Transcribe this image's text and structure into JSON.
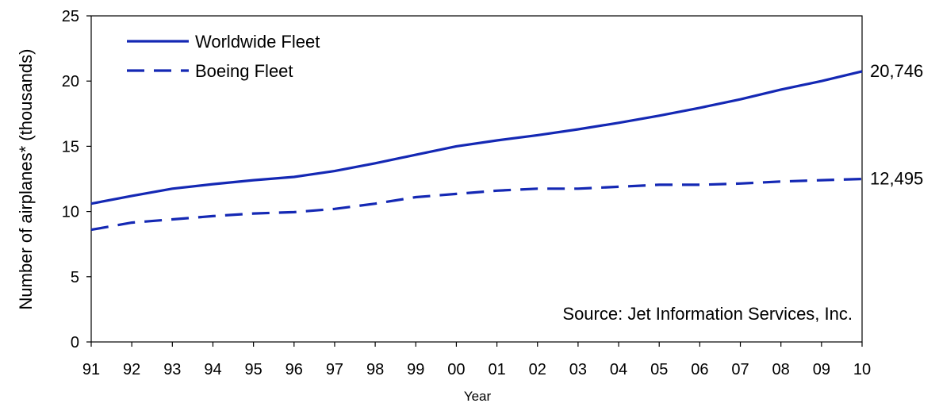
{
  "chart_data": {
    "type": "line",
    "title": "",
    "xlabel": "Year",
    "ylabel": "Number of airplanes* (thousands)",
    "categories": [
      "91",
      "92",
      "93",
      "94",
      "95",
      "96",
      "97",
      "98",
      "99",
      "00",
      "01",
      "02",
      "03",
      "04",
      "05",
      "06",
      "07",
      "08",
      "09",
      "10"
    ],
    "ylim": [
      0,
      25
    ],
    "yticks": [
      "0",
      "5",
      "10",
      "15",
      "20",
      "25"
    ],
    "grid": false,
    "legend_position": "top-left",
    "series": [
      {
        "name": "Worldwide Fleet",
        "style": "solid",
        "color": "#1428b4",
        "values": [
          10.6,
          11.2,
          11.75,
          12.1,
          12.4,
          12.65,
          13.1,
          13.7,
          14.35,
          15.0,
          15.45,
          15.85,
          16.3,
          16.8,
          17.35,
          17.95,
          18.6,
          19.35,
          20.0,
          20.746
        ],
        "end_label": "20,746"
      },
      {
        "name": "Boeing Fleet",
        "style": "dashed",
        "color": "#1428b4",
        "values": [
          8.6,
          9.15,
          9.4,
          9.65,
          9.85,
          9.95,
          10.2,
          10.6,
          11.1,
          11.35,
          11.6,
          11.75,
          11.75,
          11.9,
          12.05,
          12.05,
          12.15,
          12.3,
          12.4,
          12.495
        ],
        "end_label": "12,495"
      }
    ],
    "annotation": "Source: Jet Information Services, Inc."
  }
}
